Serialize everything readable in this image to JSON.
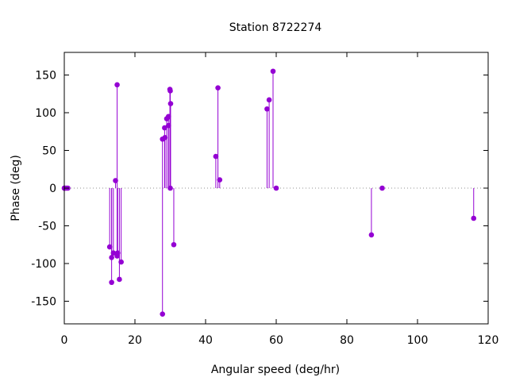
{
  "chart_data": {
    "type": "scatter",
    "style": "impulses with points",
    "title": "Station 8722274",
    "xlabel": "Angular speed (deg/hr)",
    "ylabel": "Phase (deg)",
    "xlim": [
      0,
      120
    ],
    "ylim": [
      -180,
      180
    ],
    "xticks": [
      0,
      20,
      40,
      60,
      80,
      100,
      120
    ],
    "yticks": [
      -150,
      -100,
      -50,
      0,
      50,
      100,
      150
    ],
    "grid": false,
    "zero_line": true,
    "color": "#9400d3",
    "points": [
      {
        "x": 0.0,
        "y": 0
      },
      {
        "x": 0.04,
        "y": 0
      },
      {
        "x": 0.08,
        "y": 0
      },
      {
        "x": 0.55,
        "y": 0
      },
      {
        "x": 1.0,
        "y": 0
      },
      {
        "x": 12.85,
        "y": -78
      },
      {
        "x": 13.4,
        "y": -92
      },
      {
        "x": 13.4,
        "y": -125
      },
      {
        "x": 13.9,
        "y": -86
      },
      {
        "x": 14.5,
        "y": 10
      },
      {
        "x": 14.96,
        "y": 137
      },
      {
        "x": 14.96,
        "y": -90
      },
      {
        "x": 15.0,
        "y": -89
      },
      {
        "x": 15.1,
        "y": -86
      },
      {
        "x": 15.6,
        "y": -121
      },
      {
        "x": 16.1,
        "y": -98
      },
      {
        "x": 27.8,
        "y": 65
      },
      {
        "x": 27.8,
        "y": -167
      },
      {
        "x": 28.4,
        "y": 80
      },
      {
        "x": 28.5,
        "y": 67
      },
      {
        "x": 29.0,
        "y": 92
      },
      {
        "x": 29.5,
        "y": 95
      },
      {
        "x": 29.5,
        "y": 83
      },
      {
        "x": 29.9,
        "y": 131
      },
      {
        "x": 30.0,
        "y": 129
      },
      {
        "x": 30.0,
        "y": 0
      },
      {
        "x": 30.1,
        "y": 112
      },
      {
        "x": 31.0,
        "y": -75
      },
      {
        "x": 42.9,
        "y": 42
      },
      {
        "x": 43.5,
        "y": 133
      },
      {
        "x": 44.0,
        "y": 11
      },
      {
        "x": 57.4,
        "y": 105
      },
      {
        "x": 58.0,
        "y": 117
      },
      {
        "x": 59.1,
        "y": 155
      },
      {
        "x": 60.0,
        "y": 0
      },
      {
        "x": 86.95,
        "y": -62
      },
      {
        "x": 90.0,
        "y": 0
      },
      {
        "x": 115.9,
        "y": -40
      }
    ]
  }
}
